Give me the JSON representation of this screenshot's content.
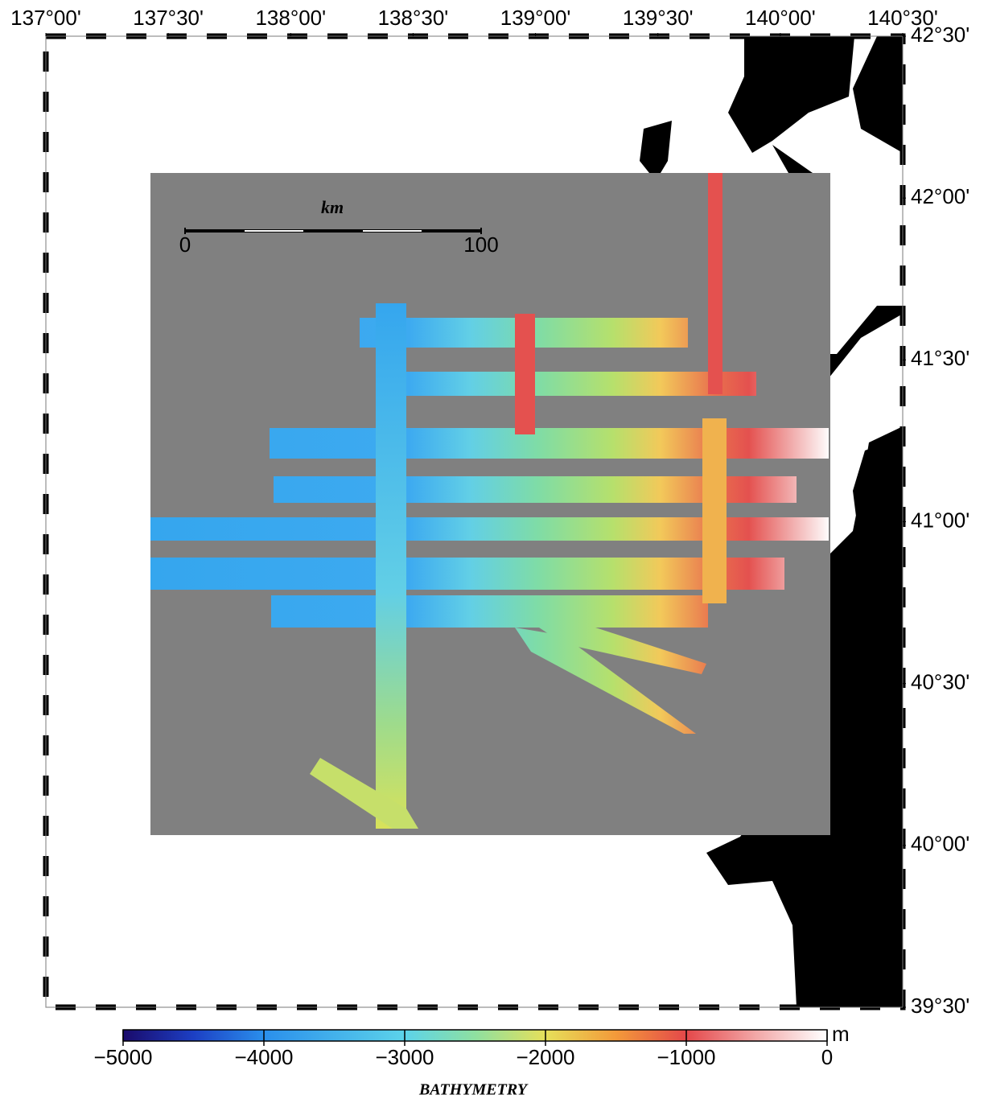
{
  "map": {
    "lon_lim": [
      137,
      140.5
    ],
    "lon_ticks": [
      {
        "value": 137.0,
        "label": "137°00'"
      },
      {
        "value": 137.5,
        "label": "137°30'"
      },
      {
        "value": 138.0,
        "label": "138°00'"
      },
      {
        "value": 138.5,
        "label": "138°30'"
      },
      {
        "value": 139.0,
        "label": "139°00'"
      },
      {
        "value": 139.5,
        "label": "139°30'"
      },
      {
        "value": 140.0,
        "label": "140°00'"
      },
      {
        "value": 140.5,
        "label": "140°30'"
      }
    ],
    "lat_lim": [
      39.5,
      42.5
    ],
    "lat_ticks": [
      {
        "value": 42.5,
        "label": "42°30'"
      },
      {
        "value": 42.0,
        "label": "42°00'"
      },
      {
        "value": 41.5,
        "label": "41°30'"
      },
      {
        "value": 41.0,
        "label": "41°00'"
      },
      {
        "value": 40.5,
        "label": "40°30'"
      },
      {
        "value": 40.0,
        "label": "40°00'"
      },
      {
        "value": 39.5,
        "label": "39°30'"
      }
    ],
    "scale_bar": {
      "unit": "km",
      "ticks": [
        0,
        100
      ]
    },
    "colorbar": {
      "title": "BATHYMETRY",
      "unit": "m",
      "lim": [
        -5000,
        0
      ],
      "ticks": [
        {
          "value": -5000,
          "label": "−5000"
        },
        {
          "value": -4000,
          "label": "−4000"
        },
        {
          "value": -3000,
          "label": "−3000"
        },
        {
          "value": -2000,
          "label": "−2000"
        },
        {
          "value": -1000,
          "label": "−1000"
        },
        0
      ]
    }
  }
}
